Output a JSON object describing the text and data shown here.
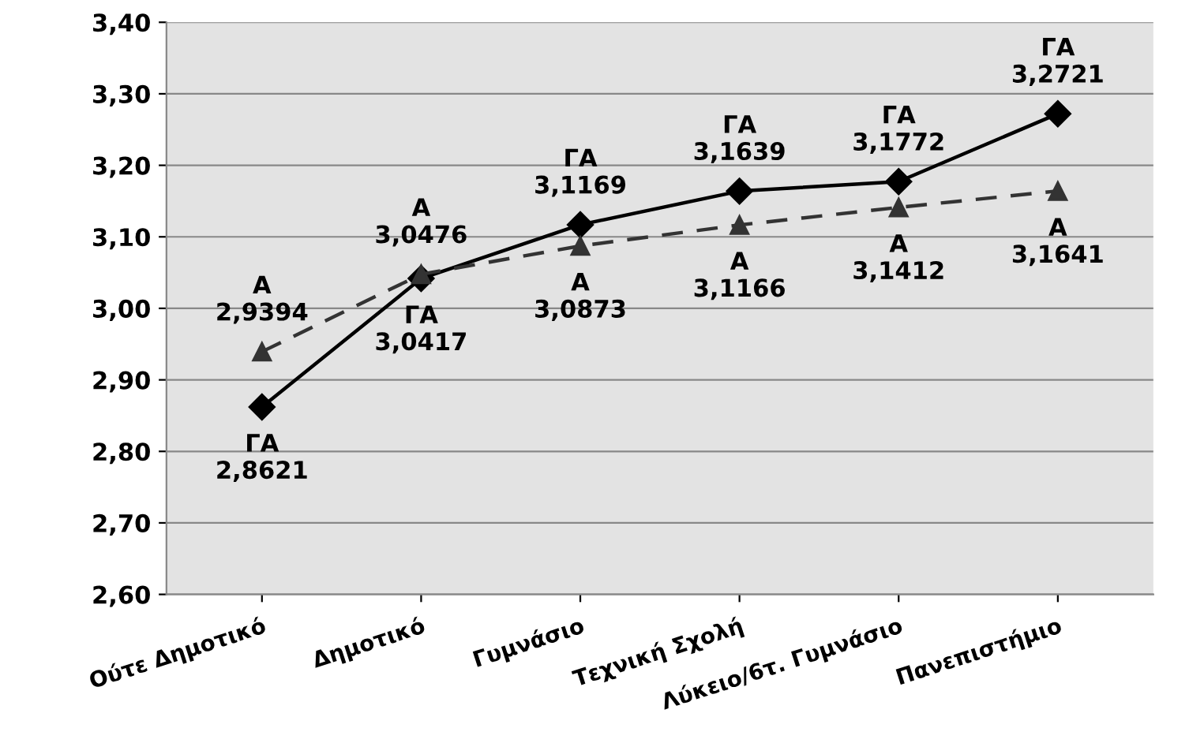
{
  "chart_data": {
    "type": "line",
    "categories": [
      "Ούτε Δημοτικό",
      "Δημοτικό",
      "Γυμνάσιο",
      "Τεχνική Σχολή",
      "Λύκειο/6τ. Γυμνάσιο",
      "Πανεπιστήμιο"
    ],
    "series": [
      {
        "name": "ΓΑ",
        "color": "#000000",
        "marker": "diamond",
        "line_style": "solid",
        "values": [
          2.8621,
          3.0417,
          3.1169,
          3.1639,
          3.1772,
          3.2721
        ],
        "value_labels": [
          "2,8621",
          "3,0417",
          "3,1169",
          "3,1639",
          "3,1772",
          "3,2721"
        ]
      },
      {
        "name": "Α",
        "color": "#333333",
        "marker": "triangle",
        "line_style": "dashed",
        "values": [
          2.9394,
          3.0476,
          3.0873,
          3.1166,
          3.1412,
          3.1641
        ],
        "value_labels": [
          "2,9394",
          "3,0476",
          "3,0873",
          "3,1166",
          "3,1412",
          "3,1641"
        ]
      }
    ],
    "ylim": [
      2.6,
      3.4
    ],
    "yticks": [
      {
        "value": 2.6,
        "label": "2,60"
      },
      {
        "value": 2.7,
        "label": "2,70"
      },
      {
        "value": 2.8,
        "label": "2,80"
      },
      {
        "value": 2.9,
        "label": "2,90"
      },
      {
        "value": 3.0,
        "label": "3,00"
      },
      {
        "value": 3.1,
        "label": "3,10"
      },
      {
        "value": 3.2,
        "label": "3,20"
      },
      {
        "value": 3.3,
        "label": "3,30"
      },
      {
        "value": 3.4,
        "label": "3,40"
      }
    ],
    "grid": "y",
    "legend": false
  }
}
